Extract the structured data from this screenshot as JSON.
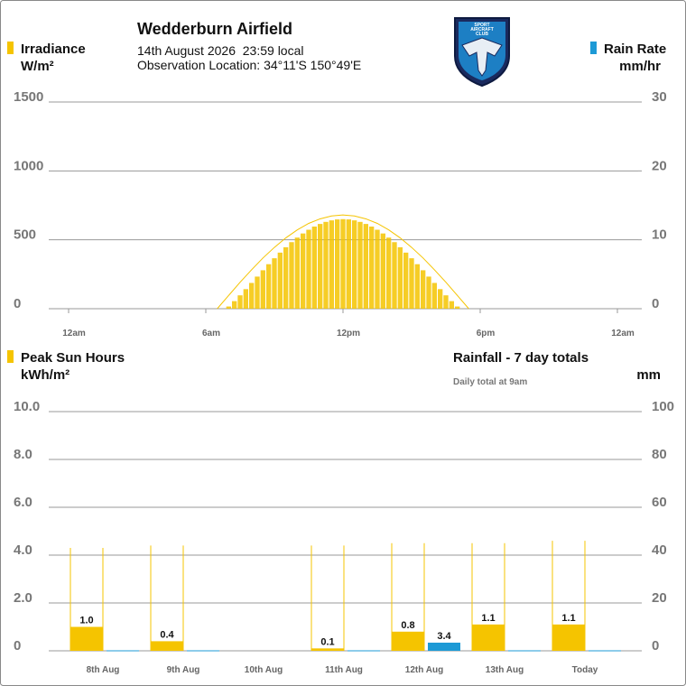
{
  "header": {
    "title": "Wedderburn Airfield",
    "date": "14th August 2026  23:59 local",
    "location": "Observation Location: 34°11'S 150°49'E",
    "logo_text": [
      "SPORT",
      "AIRCRAFT",
      "CLUB"
    ]
  },
  "chart_data": [
    {
      "type": "bar",
      "ylabel": "W/m²",
      "y2label": "mm/hr",
      "xlim": [
        0,
        24
      ],
      "xticks": [
        {
          "value": 0,
          "label": "12am"
        },
        {
          "value": 6,
          "label": "6am"
        },
        {
          "value": 12,
          "label": "12pm"
        },
        {
          "value": 18,
          "label": "6pm"
        },
        {
          "value": 24,
          "label": "12am"
        }
      ],
      "ylim": [
        0,
        1500
      ],
      "yticks": [
        0,
        500,
        1000,
        1500
      ],
      "y2lim": [
        0,
        30
      ],
      "y2ticks": [
        0,
        10,
        20,
        30
      ],
      "grid": true,
      "series": [
        {
          "name": "Irradiance",
          "color": "#f5c400",
          "x": [
            7,
            7.25,
            7.5,
            7.75,
            8,
            8.25,
            8.5,
            8.75,
            9,
            9.25,
            9.5,
            9.75,
            10,
            10.25,
            10.5,
            10.75,
            11,
            11.25,
            11.5,
            11.75,
            12,
            12.25,
            12.5,
            12.75,
            13,
            13.25,
            13.5,
            13.75,
            14,
            14.25,
            14.5,
            14.75,
            15,
            15.25,
            15.5,
            15.75,
            16,
            16.25,
            16.5,
            16.75,
            17
          ],
          "values": [
            16,
            55,
            97,
            142,
            187,
            233,
            279,
            323,
            366,
            407,
            446,
            483,
            516,
            546,
            573,
            596,
            615,
            630,
            641,
            648,
            650,
            648,
            641,
            630,
            615,
            596,
            573,
            546,
            516,
            483,
            446,
            407,
            366,
            323,
            279,
            233,
            187,
            142,
            97,
            55,
            16
          ]
        },
        {
          "color": "#f5c400",
          "x": [
            6.5,
            7,
            7.5,
            8,
            8.5,
            9,
            9.5,
            10,
            10.5,
            11,
            11.5,
            12,
            12.5,
            13,
            13.5,
            14,
            14.5,
            15,
            15.5,
            16,
            16.5,
            17,
            17.5
          ],
          "values": [
            0,
            96,
            192,
            282,
            368,
            445,
            514,
            572,
            619,
            652,
            673,
            680,
            673,
            652,
            619,
            572,
            514,
            445,
            368,
            282,
            192,
            96,
            0
          ]
        },
        {
          "name": "Rain Rate",
          "color": "#1d9ad6",
          "axis": "y2",
          "x": [],
          "values": []
        }
      ]
    },
    {
      "type": "bar",
      "ylabel": "kWh/m²",
      "y2label": "mm",
      "subtitle": "Daily total at 9am",
      "categories": [
        "8th Aug",
        "9th Aug",
        "10th Aug",
        "11th Aug",
        "12th Aug",
        "13th Aug",
        "Today"
      ],
      "ylim": [
        0,
        10
      ],
      "yticks": [
        0,
        {
          "value": 2,
          "label": "2.0"
        },
        {
          "value": 4,
          "label": "4.0"
        },
        {
          "value": 6,
          "label": "6.0"
        },
        {
          "value": 8,
          "label": "8.0"
        },
        {
          "value": 10,
          "label": "10.0"
        }
      ],
      "y2lim": [
        0,
        100
      ],
      "y2ticks": [
        0,
        20,
        40,
        60,
        80,
        100
      ],
      "grid": true,
      "series": [
        {
          "name": "Peak Sun Hours",
          "color": "#f5c400",
          "values": [
            1.0,
            0.4,
            null,
            0.1,
            0.8,
            1.1,
            1.1
          ],
          "value_labels": [
            "1.0",
            "0.4",
            null,
            "0.1",
            "0.8",
            "1.1",
            "1.1"
          ]
        },
        {
          "color": "#f5c400",
          "values": [
            4.3,
            4.4,
            null,
            4.4,
            4.5,
            4.5,
            4.6
          ]
        },
        {
          "name": "Rainfall - 7 day totals",
          "color": "#1d9ad6",
          "axis": "y2",
          "values": [
            0,
            0,
            null,
            0,
            3.4,
            0,
            0
          ],
          "value_labels": [
            null,
            null,
            null,
            null,
            "3.4",
            null,
            null
          ]
        }
      ]
    }
  ]
}
